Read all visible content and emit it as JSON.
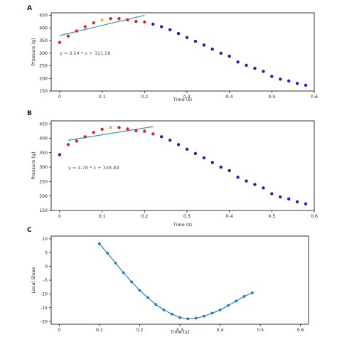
{
  "chart_data": [
    {
      "panel": "A",
      "type": "scatter",
      "xlabel": "Time (s)",
      "ylabel": "Pressure (g)",
      "xlim": [
        -0.02,
        0.6
      ],
      "ylim": [
        150,
        460
      ],
      "xticks": [
        0,
        0.1,
        0.2,
        0.3,
        0.4,
        0.5,
        0.6
      ],
      "yticks": [
        150,
        200,
        250,
        300,
        350,
        400,
        450
      ],
      "x": [
        0,
        0.02,
        0.04,
        0.06,
        0.08,
        0.1,
        0.12,
        0.14,
        0.16,
        0.18,
        0.2,
        0.22,
        0.24,
        0.26,
        0.28,
        0.3,
        0.32,
        0.34,
        0.36,
        0.38,
        0.4,
        0.42,
        0.44,
        0.46,
        0.48,
        0.5,
        0.52,
        0.54,
        0.56,
        0.58
      ],
      "y": [
        343,
        368,
        388,
        405,
        420,
        431,
        437,
        437,
        432,
        426,
        424,
        415,
        405,
        393,
        378,
        362,
        347,
        332,
        316,
        300,
        288,
        265,
        252,
        240,
        228,
        208,
        197,
        190,
        180,
        173
      ],
      "colors": [
        "#d62728",
        "#d62728",
        "#d62728",
        "#d62728",
        "#d62728",
        "#f5b82e",
        "#d62728",
        "#d62728",
        "#d62728",
        "#d62728",
        "#d62728",
        "#1f1fbf",
        "#1f1fbf",
        "#1f1fbf",
        "#1f1fbf",
        "#1f1fbf",
        "#1f1fbf",
        "#1f1fbf",
        "#1f1fbf",
        "#1f1fbf",
        "#1f1fbf",
        "#1f1fbf",
        "#1f1fbf",
        "#1f1fbf",
        "#1f1fbf",
        "#1f1fbf",
        "#1f1fbf",
        "#1f1fbf",
        "#1f1fbf",
        "#1f1fbf"
      ],
      "fit": {
        "x": [
          0,
          0.2
        ],
        "y": [
          370,
          450
        ],
        "label": "y = 6.24 * x + 311.58",
        "color": "#3a8fb7"
      }
    },
    {
      "panel": "B",
      "type": "scatter",
      "xlabel": "Time (s)",
      "ylabel": "Pressure (g)",
      "xlim": [
        -0.02,
        0.6
      ],
      "ylim": [
        150,
        460
      ],
      "xticks": [
        0,
        0.1,
        0.2,
        0.3,
        0.4,
        0.5,
        0.6
      ],
      "yticks": [
        150,
        200,
        250,
        300,
        350,
        400,
        450
      ],
      "x": [
        0,
        0.02,
        0.04,
        0.06,
        0.08,
        0.1,
        0.12,
        0.14,
        0.16,
        0.18,
        0.2,
        0.22,
        0.24,
        0.26,
        0.28,
        0.3,
        0.32,
        0.34,
        0.36,
        0.38,
        0.4,
        0.42,
        0.44,
        0.46,
        0.48,
        0.5,
        0.52,
        0.54,
        0.56,
        0.58
      ],
      "y": [
        343,
        378,
        390,
        405,
        420,
        431,
        437,
        437,
        432,
        426,
        424,
        415,
        405,
        393,
        378,
        362,
        347,
        332,
        316,
        300,
        288,
        265,
        252,
        240,
        228,
        208,
        197,
        190,
        180,
        173
      ],
      "colors": [
        "#1f1fbf",
        "#d62728",
        "#d62728",
        "#d62728",
        "#d62728",
        "#d62728",
        "#f5b82e",
        "#d62728",
        "#d62728",
        "#d62728",
        "#d62728",
        "#d62728",
        "#1f1fbf",
        "#1f1fbf",
        "#1f1fbf",
        "#1f1fbf",
        "#1f1fbf",
        "#1f1fbf",
        "#1f1fbf",
        "#1f1fbf",
        "#1f1fbf",
        "#1f1fbf",
        "#1f1fbf",
        "#1f1fbf",
        "#1f1fbf",
        "#1f1fbf",
        "#1f1fbf",
        "#1f1fbf",
        "#1f1fbf",
        "#1f1fbf"
      ],
      "fit": {
        "x": [
          0.02,
          0.22
        ],
        "y": [
          393,
          440
        ],
        "label": "y = 4.78 * x + 338.89",
        "color": "#3a8fb7"
      }
    },
    {
      "panel": "C",
      "type": "line",
      "xlabel": "Time [s]",
      "ylabel": "Local Slope",
      "xlim": [
        -0.02,
        0.62
      ],
      "ylim": [
        -21,
        11
      ],
      "xticks": [
        0,
        0.1,
        0.2,
        0.3,
        0.4,
        0.5,
        0.6
      ],
      "yticks": [
        -20,
        -15,
        -10,
        -5,
        0,
        5,
        10
      ],
      "x": [
        0.1,
        0.12,
        0.14,
        0.16,
        0.18,
        0.2,
        0.22,
        0.24,
        0.26,
        0.28,
        0.3,
        0.32,
        0.34,
        0.36,
        0.38,
        0.4,
        0.42,
        0.44,
        0.46,
        0.48
      ],
      "y": [
        8.2,
        4.8,
        1.2,
        -2.3,
        -5.6,
        -8.7,
        -11.3,
        -13.8,
        -15.8,
        -17.3,
        -18.6,
        -19.0,
        -18.8,
        -18.1,
        -17.0,
        -15.8,
        -14.2,
        -12.6,
        -10.9,
        -9.6
      ],
      "color": "#1f77b4"
    }
  ]
}
